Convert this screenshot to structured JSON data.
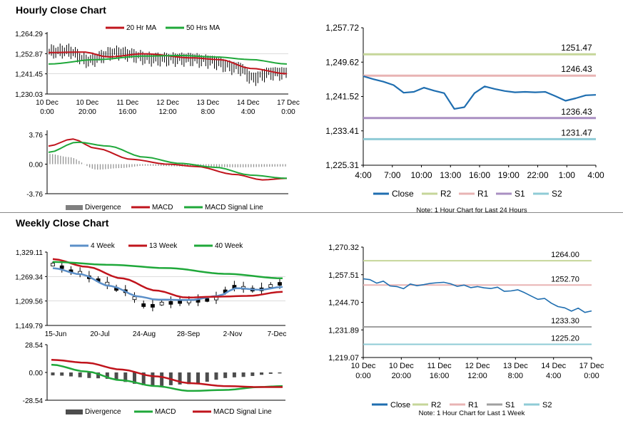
{
  "hourly": {
    "title": "Hourly Close Chart",
    "price": {
      "type": "line",
      "legend": [
        "20 Hr MA",
        "50 Hrs MA"
      ],
      "yticks": [
        "1,264.29",
        "1,252.87",
        "1,241.45",
        "1,230.03"
      ],
      "ylim": [
        1230.03,
        1264.29
      ],
      "xticks": [
        [
          "10 Dec",
          "0:00"
        ],
        [
          "10 Dec",
          "20:00"
        ],
        [
          "11 Dec",
          "16:00"
        ],
        [
          "12 Dec",
          "12:00"
        ],
        [
          "13 Dec",
          "8:00"
        ],
        [
          "14 Dec",
          "4:00"
        ],
        [
          "17 Dec",
          "0:00"
        ]
      ]
    },
    "macd": {
      "yticks": [
        "3.76",
        "0.00",
        "-3.76"
      ],
      "ylim": [
        -3.76,
        3.76
      ],
      "legend": [
        "Divergence",
        "MACD",
        "MACD Signal Line"
      ]
    }
  },
  "hourly_right": {
    "yticks": [
      "1,257.72",
      "1,249.62",
      "1,241.52",
      "1,233.41",
      "1,225.31"
    ],
    "ylim": [
      1225.31,
      1257.72
    ],
    "xticks": [
      "4:00",
      "7:00",
      "10:00",
      "13:00",
      "16:00",
      "19:00",
      "22:00",
      "1:00",
      "4:00"
    ],
    "levels": [
      {
        "name": "R2",
        "value": 1251.47,
        "label": "1251.47",
        "color": "#c6d69a"
      },
      {
        "name": "R1",
        "value": 1246.43,
        "label": "1246.43",
        "color": "#e8b4b4"
      },
      {
        "name": "S1",
        "value": 1236.43,
        "label": "1236.43",
        "color": "#a98fc2"
      },
      {
        "name": "S2",
        "value": 1231.47,
        "label": "1231.47",
        "color": "#8fcbd6"
      }
    ],
    "close": [
      1246.3,
      1245.6,
      1245.0,
      1244.2,
      1242.4,
      1242.6,
      1243.6,
      1242.9,
      1242.3,
      1238.6,
      1239.0,
      1242.3,
      1243.9,
      1243.3,
      1242.8,
      1242.5,
      1242.6,
      1242.5,
      1242.6,
      1241.6,
      1240.5,
      1241.1,
      1241.8,
      1241.9
    ],
    "legend": [
      "Close",
      "R2",
      "R1",
      "S1",
      "S2"
    ],
    "note": "Note: 1 Hour Chart for Last 24 Hours"
  },
  "weekly": {
    "title": "Weekly Close Chart",
    "price": {
      "legend": [
        "4 Week",
        "13 Week",
        "40 Week"
      ],
      "yticks": [
        "1,329.11",
        "1,269.34",
        "1,209.56",
        "1,149.79"
      ],
      "ylim": [
        1149.79,
        1329.11
      ],
      "xticks": [
        "15-Jun",
        "20-Jul",
        "24-Aug",
        "28-Sep",
        "2-Nov",
        "7-Dec"
      ]
    },
    "macd": {
      "yticks": [
        "28.54",
        "0.00",
        "-28.54"
      ],
      "ylim": [
        -28.54,
        28.54
      ],
      "legend": [
        "Divergence",
        "MACD",
        "MACD Signal Line"
      ]
    }
  },
  "weekly_right": {
    "yticks": [
      "1,270.32",
      "1,257.51",
      "1,244.70",
      "1,231.89",
      "1,219.07"
    ],
    "ylim": [
      1219.07,
      1270.32
    ],
    "xticks": [
      [
        "10 Dec",
        "0:00"
      ],
      [
        "10 Dec",
        "20:00"
      ],
      [
        "11 Dec",
        "16:00"
      ],
      [
        "12 Dec",
        "12:00"
      ],
      [
        "13 Dec",
        "8:00"
      ],
      [
        "14 Dec",
        "4:00"
      ],
      [
        "17 Dec",
        "0:00"
      ]
    ],
    "levels": [
      {
        "name": "R2",
        "value": 1264.0,
        "label": "1264.00",
        "color": "#c6d69a"
      },
      {
        "name": "R1",
        "value": 1252.7,
        "label": "1252.70",
        "color": "#e8b4b4"
      },
      {
        "name": "S1",
        "value": 1233.3,
        "label": "1233.30",
        "color": "#a0a0a0"
      },
      {
        "name": "S2",
        "value": 1225.2,
        "label": "1225.20",
        "color": "#8fcbd6"
      }
    ],
    "close": [
      1255.6,
      1255.2,
      1253.6,
      1254.5,
      1252.3,
      1252.0,
      1251.0,
      1253.2,
      1252.4,
      1252.9,
      1253.5,
      1253.8,
      1254.0,
      1253.3,
      1252.1,
      1252.7,
      1251.5,
      1252.0,
      1251.4,
      1251.1,
      1251.7,
      1249.8,
      1250.0,
      1250.5,
      1249.2,
      1247.6,
      1246.1,
      1246.5,
      1244.3,
      1242.7,
      1242.1,
      1240.6,
      1242.0,
      1240.0,
      1240.7
    ],
    "legend": [
      "Close",
      "R2",
      "R1",
      "S1",
      "S2"
    ],
    "note": "Note: 1 Hour Chart for Last 1 Week"
  },
  "chart_data": [
    {
      "type": "line",
      "title": "Hourly Close Chart",
      "series": [
        {
          "name": "20 Hr MA",
          "color": "#c0141c"
        },
        {
          "name": "50 Hrs MA",
          "color": "#1fa83a"
        }
      ],
      "ylim": [
        1230.03,
        1264.29
      ]
    },
    {
      "type": "line",
      "title": "Weekly Close Chart",
      "series": [
        {
          "name": "4 Week",
          "color": "#5b8fc8"
        },
        {
          "name": "13 Week",
          "color": "#c0141c"
        },
        {
          "name": "40 Week",
          "color": "#1fa83a"
        }
      ],
      "ylim": [
        1149.79,
        1329.11
      ]
    }
  ]
}
